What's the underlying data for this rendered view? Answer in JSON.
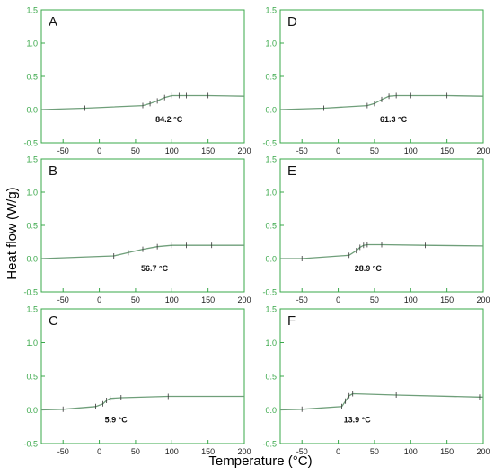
{
  "figure": {
    "ylabel": "Heat flow (W/g)",
    "xlabel": "Temperature (°C)"
  },
  "chart_data": [
    {
      "type": "line",
      "panel": "A",
      "annotation": "84.2 °C",
      "xlim": [
        -80,
        200
      ],
      "ylim": [
        -0.5,
        1.5
      ],
      "xticks": [
        "-50",
        "0",
        "50",
        "100",
        "150",
        "200"
      ],
      "yticks": [
        "-0.5",
        "0.0",
        "0.5",
        "1.0",
        "1.5"
      ],
      "grid": false,
      "line_color": "#6f9f7a",
      "series": [
        {
          "x": [
            -80,
            -20,
            60,
            70,
            80,
            90,
            100,
            110,
            120,
            150,
            200
          ],
          "y": [
            0.0,
            0.02,
            0.06,
            0.09,
            0.13,
            0.18,
            0.21,
            0.21,
            0.21,
            0.21,
            0.2
          ]
        }
      ]
    },
    {
      "type": "line",
      "panel": "D",
      "annotation": "61.3 °C",
      "xlim": [
        -80,
        200
      ],
      "ylim": [
        -0.5,
        1.5
      ],
      "xticks": [
        "-50",
        "0",
        "50",
        "100",
        "150",
        "200"
      ],
      "yticks": [
        "-0.5",
        "0.0",
        "0.5",
        "1.0",
        "1.5"
      ],
      "grid": false,
      "line_color": "#6f9f7a",
      "series": [
        {
          "x": [
            -80,
            -20,
            40,
            50,
            60,
            70,
            80,
            100,
            150,
            200
          ],
          "y": [
            0.0,
            0.02,
            0.06,
            0.09,
            0.15,
            0.2,
            0.21,
            0.21,
            0.21,
            0.2
          ]
        }
      ]
    },
    {
      "type": "line",
      "panel": "B",
      "annotation": "56.7 °C",
      "xlim": [
        -80,
        200
      ],
      "ylim": [
        -0.5,
        1.5
      ],
      "xticks": [
        "-50",
        "0",
        "50",
        "100",
        "150",
        "200"
      ],
      "yticks": [
        "-0.5",
        "0.0",
        "0.5",
        "1.0",
        "1.5"
      ],
      "grid": false,
      "line_color": "#6f9f7a",
      "series": [
        {
          "x": [
            -80,
            20,
            40,
            60,
            80,
            100,
            120,
            155,
            200
          ],
          "y": [
            0.0,
            0.04,
            0.09,
            0.14,
            0.18,
            0.2,
            0.2,
            0.2,
            0.2
          ]
        }
      ]
    },
    {
      "type": "line",
      "panel": "E",
      "annotation": "28.9 °C",
      "xlim": [
        -80,
        200
      ],
      "ylim": [
        -0.5,
        1.5
      ],
      "xticks": [
        "-50",
        "0",
        "50",
        "100",
        "150",
        "200"
      ],
      "yticks": [
        "-0.5",
        "0.0",
        "0.5",
        "1.0",
        "1.5"
      ],
      "grid": false,
      "line_color": "#6f9f7a",
      "series": [
        {
          "x": [
            -80,
            -50,
            15,
            25,
            30,
            35,
            40,
            60,
            120,
            200
          ],
          "y": [
            0.0,
            0.0,
            0.05,
            0.12,
            0.17,
            0.2,
            0.21,
            0.21,
            0.2,
            0.19
          ]
        }
      ]
    },
    {
      "type": "line",
      "panel": "C",
      "annotation": "5.9 °C",
      "xlim": [
        -80,
        200
      ],
      "ylim": [
        -0.5,
        1.5
      ],
      "xticks": [
        "-50",
        "0",
        "50",
        "100",
        "150",
        "200"
      ],
      "yticks": [
        "-0.5",
        "0.0",
        "0.5",
        "1.0",
        "1.5"
      ],
      "grid": false,
      "line_color": "#6f9f7a",
      "series": [
        {
          "x": [
            -80,
            -50,
            -5,
            5,
            10,
            15,
            30,
            95,
            200
          ],
          "y": [
            0.0,
            0.01,
            0.05,
            0.09,
            0.14,
            0.17,
            0.18,
            0.2,
            0.2
          ]
        }
      ]
    },
    {
      "type": "line",
      "panel": "F",
      "annotation": "13.9 °C",
      "xlim": [
        -80,
        200
      ],
      "ylim": [
        -0.5,
        1.5
      ],
      "xticks": [
        "-50",
        "0",
        "50",
        "100",
        "150",
        "200"
      ],
      "yticks": [
        "-0.5",
        "0.0",
        "0.5",
        "1.0",
        "1.5"
      ],
      "grid": false,
      "line_color": "#6f9f7a",
      "series": [
        {
          "x": [
            -80,
            -50,
            5,
            10,
            15,
            20,
            80,
            195,
            200
          ],
          "y": [
            0.0,
            0.01,
            0.05,
            0.13,
            0.21,
            0.24,
            0.22,
            0.19,
            0.19
          ]
        }
      ]
    }
  ]
}
